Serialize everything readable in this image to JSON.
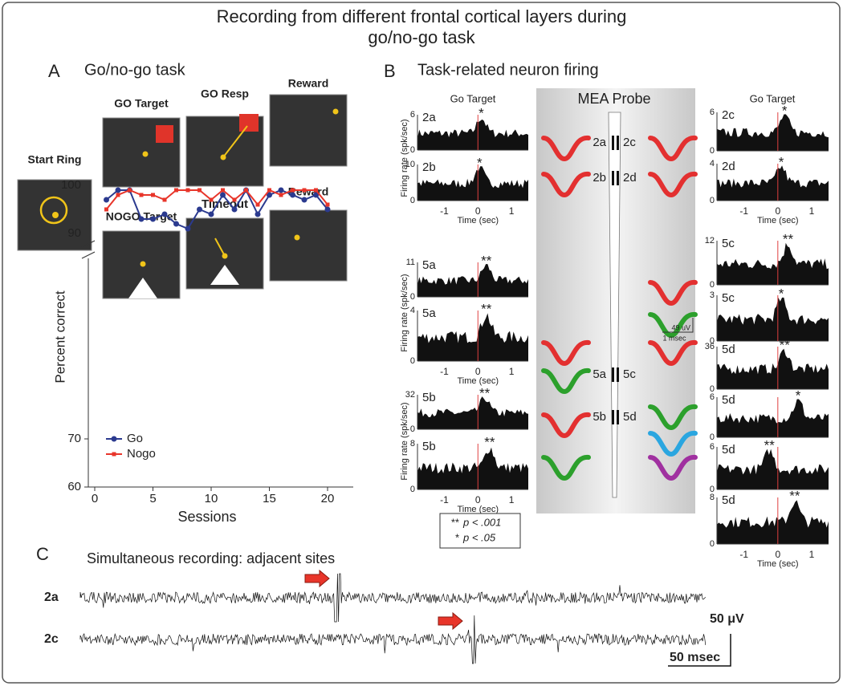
{
  "title_lines": [
    "Recording from different frontal cortical layers during",
    "go/no-go task"
  ],
  "panel_a": {
    "label": "A",
    "title": "Go/no-go task",
    "screens": {
      "start": "Start Ring",
      "go_target": "GO Target",
      "go_resp": "GO Resp",
      "reward_go": "Reward",
      "nogo_target": "NOGO Target",
      "timeout": "Timeout",
      "reward_nogo": "Reward"
    }
  },
  "chart_data": {
    "type": "line",
    "x": [
      1,
      2,
      3,
      4,
      5,
      6,
      7,
      8,
      9,
      10,
      11,
      12,
      13,
      14,
      15,
      16,
      17,
      18,
      19,
      20
    ],
    "series": [
      {
        "name": "Go",
        "color": "#2b3a8f",
        "values": [
          97,
          99,
          99,
          93,
          93,
          94,
          92,
          91,
          95,
          94,
          98,
          95,
          99,
          94,
          98,
          99,
          98,
          97,
          98,
          95
        ]
      },
      {
        "name": "Nogo",
        "color": "#e8352a",
        "values": [
          95,
          98,
          99,
          98,
          98,
          97,
          99,
          99,
          99,
          97,
          99,
          97,
          99,
          96,
          99,
          98,
          99,
          99,
          99,
          96
        ]
      }
    ],
    "xlim": [
      0,
      20
    ],
    "xticks": [
      0,
      5,
      10,
      15,
      20
    ],
    "ylim": [
      60,
      100
    ],
    "yticks": [
      60,
      70,
      90,
      100
    ],
    "ybreak": [
      70,
      90
    ],
    "x_label": "Sessions",
    "y_label": "Percent correct"
  },
  "panel_b": {
    "label": "B",
    "title": "Task-related neuron firing",
    "column_title": "Go Target",
    "y_label": "Firing rate (spk/sec)",
    "x_label": "Time (sec)",
    "xlim": [
      -1.8,
      1.5
    ],
    "xticks": [
      -1,
      0,
      1
    ],
    "left": [
      {
        "unit": "2a",
        "yticks": [
          0,
          6
        ],
        "sig": "*"
      },
      {
        "unit": "2b",
        "yticks": [
          0,
          10
        ],
        "sig": "*"
      },
      {
        "unit": "5a",
        "yticks": [
          0,
          11
        ],
        "sig": "**"
      },
      {
        "unit": "5a",
        "yticks": [
          0,
          4
        ],
        "sig": "**"
      },
      {
        "unit": "5b",
        "yticks": [
          0,
          32
        ],
        "sig": "**"
      },
      {
        "unit": "5b",
        "yticks": [
          0,
          8
        ],
        "sig": "**"
      }
    ],
    "right": [
      {
        "unit": "2c",
        "yticks": [
          0,
          6
        ],
        "sig": "*"
      },
      {
        "unit": "2d",
        "yticks": [
          0,
          4
        ],
        "sig": "*"
      },
      {
        "unit": "5c",
        "yticks": [
          0,
          12
        ],
        "sig": "**"
      },
      {
        "unit": "5c",
        "yticks": [
          0,
          3
        ],
        "sig": "*"
      },
      {
        "unit": "5d",
        "yticks": [
          0,
          36
        ],
        "sig": "**"
      },
      {
        "unit": "5d",
        "yticks": [
          0,
          6
        ],
        "sig": "*"
      },
      {
        "unit": "5d",
        "yticks": [
          0,
          6
        ],
        "sig": "**"
      },
      {
        "unit": "5d",
        "yticks": [
          0,
          8
        ],
        "sig": "**"
      }
    ],
    "probe": {
      "title": "MEA Probe",
      "sites": [
        "2a",
        "2c",
        "2b",
        "2d",
        "5a",
        "5c",
        "5b",
        "5d"
      ],
      "scale_v": "49 uV",
      "scale_t": "1 msec"
    },
    "sig_legend": [
      {
        "stars": "**",
        "text": "p < .001"
      },
      {
        "stars": "*",
        "text": "p < .05"
      }
    ]
  },
  "panel_c": {
    "label": "C",
    "title": "Simultaneous recording: adjacent sites",
    "traces": [
      "2a",
      "2c"
    ],
    "scale_v": "50 μV",
    "scale_t": "50 msec"
  }
}
